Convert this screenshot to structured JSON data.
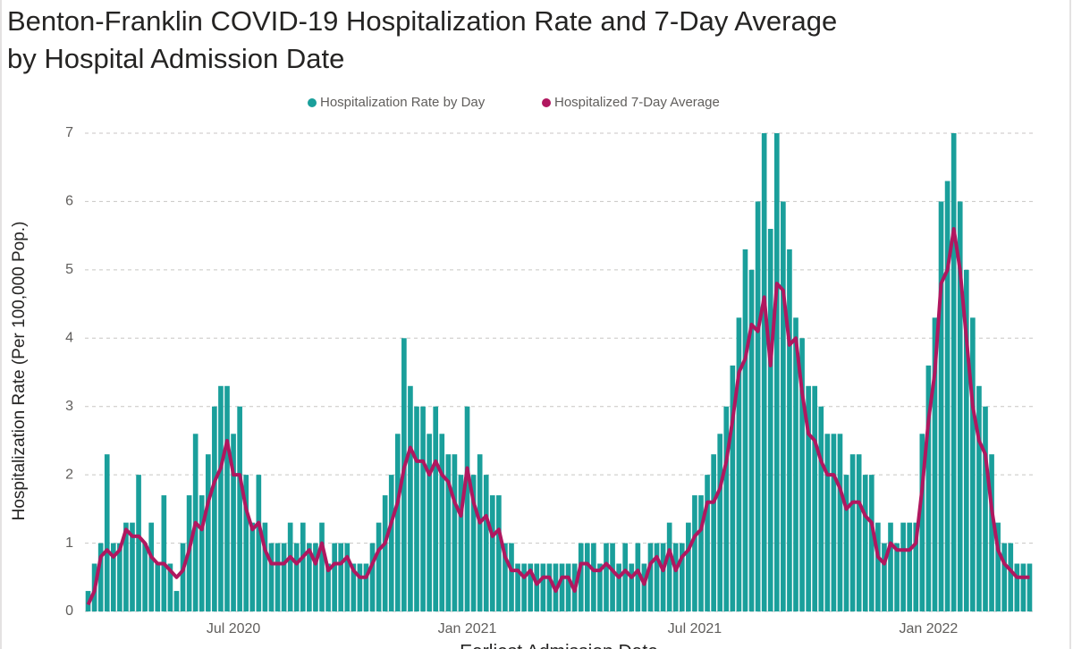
{
  "chart_data": {
    "type": "bar-line",
    "title": [
      "Benton-Franklin COVID-19 Hospitalization Rate and 7-Day Average",
      "by Hospital Admission Date"
    ],
    "x_label": "Earliest Admission Date",
    "y_label": "Hospitalization Rate (Per 100,000 Pop.)",
    "categories": [
      null,
      null,
      null,
      null,
      null,
      null,
      null,
      null,
      null,
      null,
      null,
      null,
      null,
      null,
      null,
      null,
      null,
      null,
      null,
      null,
      null,
      null,
      null,
      "Jul 2020",
      null,
      null,
      null,
      null,
      null,
      null,
      null,
      null,
      null,
      null,
      null,
      null,
      null,
      null,
      null,
      null,
      null,
      null,
      null,
      null,
      null,
      null,
      null,
      null,
      null,
      null,
      null,
      null,
      null,
      null,
      null,
      null,
      null,
      null,
      null,
      null,
      "Jan 2021",
      null,
      null,
      null,
      null,
      null,
      null,
      null,
      null,
      null,
      null,
      null,
      null,
      null,
      null,
      null,
      null,
      null,
      null,
      null,
      null,
      null,
      null,
      null,
      null,
      null,
      null,
      null,
      null,
      null,
      null,
      null,
      null,
      null,
      null,
      null,
      "Jul 2021",
      null,
      null,
      null,
      null,
      null,
      null,
      null,
      null,
      null,
      null,
      null,
      null,
      null,
      null,
      null,
      null,
      null,
      null,
      null,
      null,
      null,
      null,
      null,
      null,
      null,
      null,
      null,
      null,
      null,
      null,
      null,
      null,
      null,
      null,
      null,
      null,
      "Jan 2022",
      null,
      null,
      null,
      null,
      null,
      null,
      null,
      null,
      null,
      null,
      null,
      null,
      null,
      null,
      null,
      null
    ],
    "series": [
      {
        "name": "Hospitalization Rate by Day",
        "color": "#1a9f9b",
        "kind": "bar",
        "values": [
          0.3,
          0.7,
          1.0,
          2.3,
          1.0,
          1.0,
          1.3,
          1.3,
          2.0,
          1.0,
          1.3,
          0.7,
          1.7,
          0.7,
          0.3,
          1.0,
          1.7,
          2.6,
          1.7,
          2.3,
          3.0,
          3.3,
          3.3,
          2.6,
          3.0,
          2.0,
          1.3,
          2.0,
          1.3,
          1.0,
          1.0,
          1.0,
          1.3,
          1.0,
          1.3,
          1.0,
          1.0,
          1.3,
          0.7,
          1.0,
          1.0,
          1.0,
          0.7,
          0.7,
          0.7,
          1.0,
          1.3,
          1.7,
          2.0,
          2.6,
          4.0,
          3.3,
          3.0,
          3.0,
          2.6,
          3.0,
          2.6,
          2.3,
          2.3,
          2.0,
          3.0,
          2.0,
          2.3,
          2.0,
          1.7,
          1.7,
          1.0,
          1.0,
          0.7,
          0.7,
          0.7,
          0.7,
          0.7,
          0.7,
          0.7,
          0.7,
          0.7,
          0.7,
          1.0,
          1.0,
          1.0,
          0.7,
          1.0,
          1.0,
          0.7,
          1.0,
          0.7,
          1.0,
          0.7,
          1.0,
          1.0,
          1.0,
          1.3,
          1.0,
          1.0,
          1.3,
          1.7,
          1.7,
          2.0,
          2.3,
          2.6,
          3.0,
          3.6,
          4.3,
          5.3,
          5.0,
          6.0,
          7.0,
          5.6,
          7.0,
          6.0,
          5.3,
          4.3,
          4.0,
          3.3,
          3.3,
          3.0,
          2.6,
          2.6,
          2.6,
          2.0,
          2.3,
          2.3,
          2.0,
          2.0,
          1.3,
          1.0,
          1.3,
          1.0,
          1.3,
          1.3,
          1.3,
          2.6,
          3.6,
          4.3,
          6.0,
          6.3,
          7.0,
          6.0,
          5.0,
          4.3,
          3.3,
          3.0,
          2.3,
          1.3,
          1.0,
          1.0,
          0.7,
          0.7,
          0.7
        ]
      },
      {
        "name": "Hospitalized 7-Day Average",
        "color": "#b0175f",
        "kind": "line",
        "values": [
          0.1,
          0.3,
          0.8,
          0.9,
          0.8,
          0.9,
          1.2,
          1.1,
          1.1,
          1.0,
          0.8,
          0.7,
          0.7,
          0.6,
          0.5,
          0.6,
          0.9,
          1.3,
          1.2,
          1.6,
          1.9,
          2.1,
          2.5,
          2.0,
          2.0,
          1.5,
          1.2,
          1.3,
          0.9,
          0.7,
          0.7,
          0.7,
          0.8,
          0.7,
          0.8,
          0.9,
          0.7,
          1.0,
          0.6,
          0.7,
          0.7,
          0.8,
          0.6,
          0.5,
          0.5,
          0.7,
          0.9,
          1.0,
          1.3,
          1.6,
          2.1,
          2.4,
          2.2,
          2.2,
          2.0,
          2.2,
          2.0,
          1.9,
          1.6,
          1.4,
          2.1,
          1.6,
          1.3,
          1.4,
          1.1,
          1.2,
          0.8,
          0.6,
          0.6,
          0.5,
          0.6,
          0.4,
          0.5,
          0.5,
          0.3,
          0.5,
          0.5,
          0.3,
          0.7,
          0.7,
          0.6,
          0.6,
          0.7,
          0.6,
          0.5,
          0.6,
          0.5,
          0.6,
          0.4,
          0.7,
          0.8,
          0.6,
          0.9,
          0.6,
          0.8,
          0.9,
          1.1,
          1.2,
          1.6,
          1.6,
          1.8,
          2.2,
          2.8,
          3.5,
          3.7,
          4.2,
          4.1,
          4.6,
          3.6,
          4.8,
          4.7,
          3.9,
          4.0,
          3.2,
          2.6,
          2.5,
          2.2,
          2.0,
          2.0,
          1.8,
          1.5,
          1.6,
          1.6,
          1.4,
          1.3,
          0.8,
          0.7,
          1.0,
          0.9,
          0.9,
          0.9,
          1.0,
          1.8,
          2.8,
          3.5,
          4.8,
          5.0,
          5.6,
          5.0,
          4.0,
          3.0,
          2.5,
          2.3,
          1.5,
          0.9,
          0.7,
          0.6,
          0.5,
          0.5,
          0.5
        ]
      }
    ],
    "ylim": [
      0,
      7
    ],
    "yticks": [
      0,
      1,
      2,
      3,
      4,
      5,
      6,
      7
    ],
    "grid": true
  }
}
